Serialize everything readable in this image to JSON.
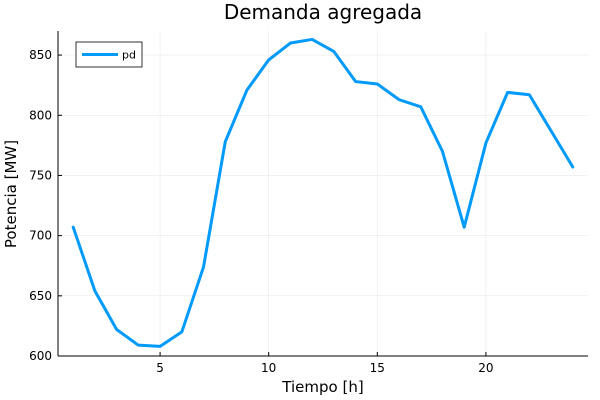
{
  "chart_data": {
    "type": "line",
    "title": "Demanda agregada",
    "xlabel": "Tiempo [h]",
    "ylabel": "Potencia [MW]",
    "xlim": [
      0.3,
      24.7
    ],
    "ylim": [
      600,
      870
    ],
    "xticks": [
      5,
      10,
      15,
      20
    ],
    "yticks": [
      600,
      650,
      700,
      750,
      800,
      850
    ],
    "grid": true,
    "legend_position": "top-left",
    "series": [
      {
        "name": "pd",
        "color": "#009AFA",
        "x": [
          1,
          2,
          3,
          4,
          5,
          6,
          7,
          8,
          9,
          10,
          11,
          12,
          13,
          14,
          15,
          16,
          17,
          18,
          19,
          20,
          21,
          22,
          23,
          24
        ],
        "y": [
          707,
          654,
          622,
          609,
          608,
          620,
          674,
          778,
          821,
          846,
          860,
          863,
          853,
          828,
          826,
          813,
          807,
          770,
          707,
          777,
          819,
          817,
          787,
          757
        ]
      }
    ]
  }
}
